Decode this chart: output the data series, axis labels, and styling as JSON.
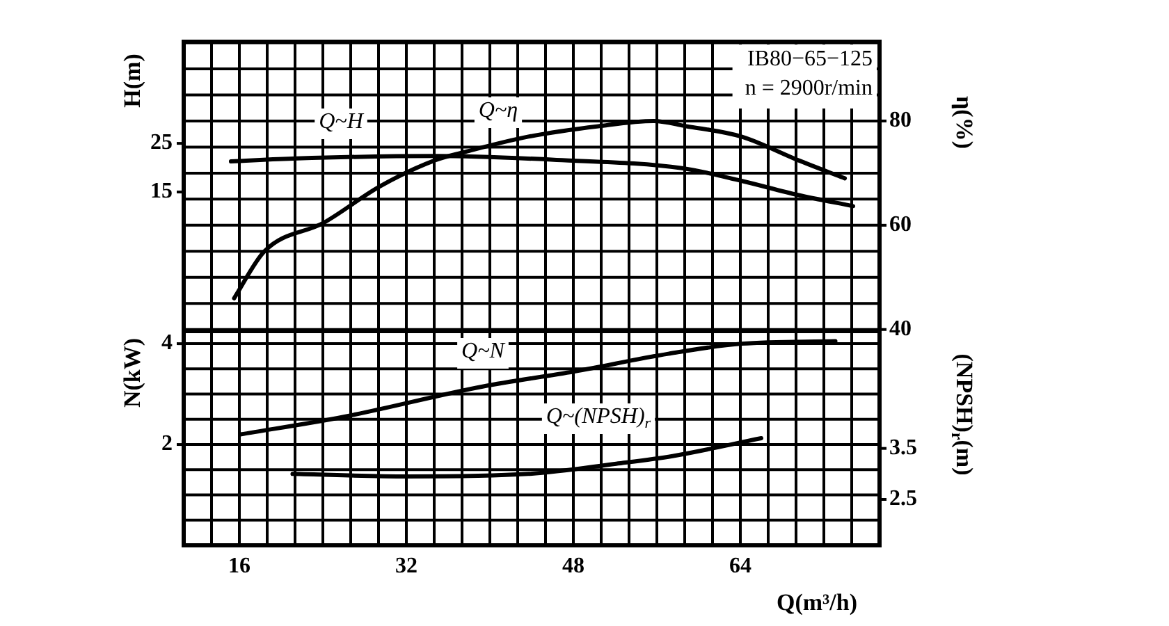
{
  "chart_data": [
    {
      "type": "line",
      "ylabel": "H(m)",
      "y2label": "η(%)",
      "annotations": [
        "IB80−65−125",
        "n = 2900r/min"
      ],
      "xlim": [
        10.67,
        77.33
      ],
      "xticks": [
        {
          "value": 13.33,
          "label": null
        },
        16,
        {
          "value": 18.67,
          "label": null
        },
        {
          "value": 21.33,
          "label": null
        },
        {
          "value": 24,
          "label": null
        },
        {
          "value": 26.67,
          "label": null
        },
        {
          "value": 29.33,
          "label": null
        },
        32,
        {
          "value": 34.67,
          "label": null
        },
        {
          "value": 37.33,
          "label": null
        },
        {
          "value": 40,
          "label": null
        },
        {
          "value": 42.67,
          "label": null
        },
        {
          "value": 45.33,
          "label": null
        },
        48,
        {
          "value": 50.67,
          "label": null
        },
        {
          "value": 53.33,
          "label": null
        },
        {
          "value": 56,
          "label": null
        },
        {
          "value": 58.67,
          "label": null
        },
        {
          "value": 61.33,
          "label": null
        },
        64,
        {
          "value": 66.67,
          "label": null
        },
        {
          "value": 69.33,
          "label": null
        },
        {
          "value": 72,
          "label": null
        },
        {
          "value": 74.67,
          "label": null
        }
      ],
      "ylim": [
        -13.6,
        45.9
      ],
      "yticks": [
        15,
        25
      ],
      "y2lim": [
        39.7,
        95.2
      ],
      "y2ticks": [
        40,
        {
          "value": 45,
          "label": null
        },
        {
          "value": 50,
          "label": null
        },
        {
          "value": 55,
          "label": null
        },
        60,
        {
          "value": 65,
          "label": null
        },
        {
          "value": 70,
          "label": null
        },
        {
          "value": 75,
          "label": null
        },
        80,
        {
          "value": 85,
          "label": null
        },
        {
          "value": 90,
          "label": null
        },
        {
          "value": 95,
          "label": null
        }
      ],
      "tick_labels": "y",
      "grid": true,
      "legend": false,
      "marker": "none",
      "line_style": "solid",
      "series": [
        {
          "name": "Q~H",
          "color": "#000000",
          "x": [
            15.2,
            21.5,
            34.8,
            46.4,
            58.4,
            64.1,
            69.5,
            74.8
          ],
          "values": [
            21.3,
            21.9,
            22.4,
            21.6,
            19.9,
            17.3,
            14.4,
            12.1
          ]
        },
        {
          "name": "Q~η",
          "color": "#000000",
          "axis": "y2",
          "x": [
            15.5,
            18.4,
            24.1,
            29.5,
            34.8,
            37.5,
            43.7,
            50.4,
            55.7,
            58.8,
            64.1,
            69.5,
            74
          ],
          "values": [
            46,
            55,
            60.5,
            67.5,
            72.5,
            74,
            77,
            79,
            80,
            79,
            77,
            72.5,
            69
          ]
        }
      ]
    },
    {
      "type": "line",
      "xlabel": "Q(m³/h)",
      "ylabel": "N(kW)",
      "y2label": "(NPSH)$_{r}$(m)",
      "xlim": [
        10.67,
        77.33
      ],
      "xticks": [
        {
          "value": 13.33,
          "label": null
        },
        16,
        {
          "value": 18.67,
          "label": null
        },
        {
          "value": 21.33,
          "label": null
        },
        {
          "value": 24,
          "label": null
        },
        {
          "value": 26.67,
          "label": null
        },
        {
          "value": 29.33,
          "label": null
        },
        32,
        {
          "value": 34.67,
          "label": null
        },
        {
          "value": 37.33,
          "label": null
        },
        {
          "value": 40,
          "label": null
        },
        {
          "value": 42.67,
          "label": null
        },
        {
          "value": 45.33,
          "label": null
        },
        48,
        {
          "value": 50.67,
          "label": null
        },
        {
          "value": 53.33,
          "label": null
        },
        {
          "value": 56,
          "label": null
        },
        {
          "value": 58.67,
          "label": null
        },
        {
          "value": 61.33,
          "label": null
        },
        64,
        {
          "value": 66.67,
          "label": null
        },
        {
          "value": 69.33,
          "label": null
        },
        {
          "value": 72,
          "label": null
        },
        {
          "value": 74.67,
          "label": null
        }
      ],
      "ylim": [
        0,
        4.25
      ],
      "yticks": [
        {
          "value": 0.5,
          "label": null
        },
        {
          "value": 1,
          "label": null
        },
        {
          "value": 1.5,
          "label": null
        },
        2,
        {
          "value": 2.5,
          "label": null
        },
        {
          "value": 3,
          "label": null
        },
        {
          "value": 3.5,
          "label": null
        },
        4
      ],
      "y2lim": [
        1.6,
        5.8
      ],
      "y2ticks": [
        2.5,
        3.5
      ],
      "grid": true,
      "legend": false,
      "marker": "none",
      "line_style": "solid",
      "series": [
        {
          "name": "Q~N",
          "color": "#000000",
          "x": [
            16.1,
            26,
            39.3,
            48.1,
            57.1,
            64.1,
            73.1
          ],
          "values": [
            2.2,
            2.55,
            3.15,
            3.45,
            3.8,
            4,
            4.05
          ]
        },
        {
          "name": "Q~(NPSH)$_{r}$",
          "color": "#000000",
          "axis": "y2",
          "x": [
            21.1,
            32.1,
            43.7,
            52.1,
            57.5,
            66
          ],
          "values": [
            3,
            2.95,
            3,
            3.2,
            3.35,
            3.7
          ]
        }
      ]
    }
  ]
}
